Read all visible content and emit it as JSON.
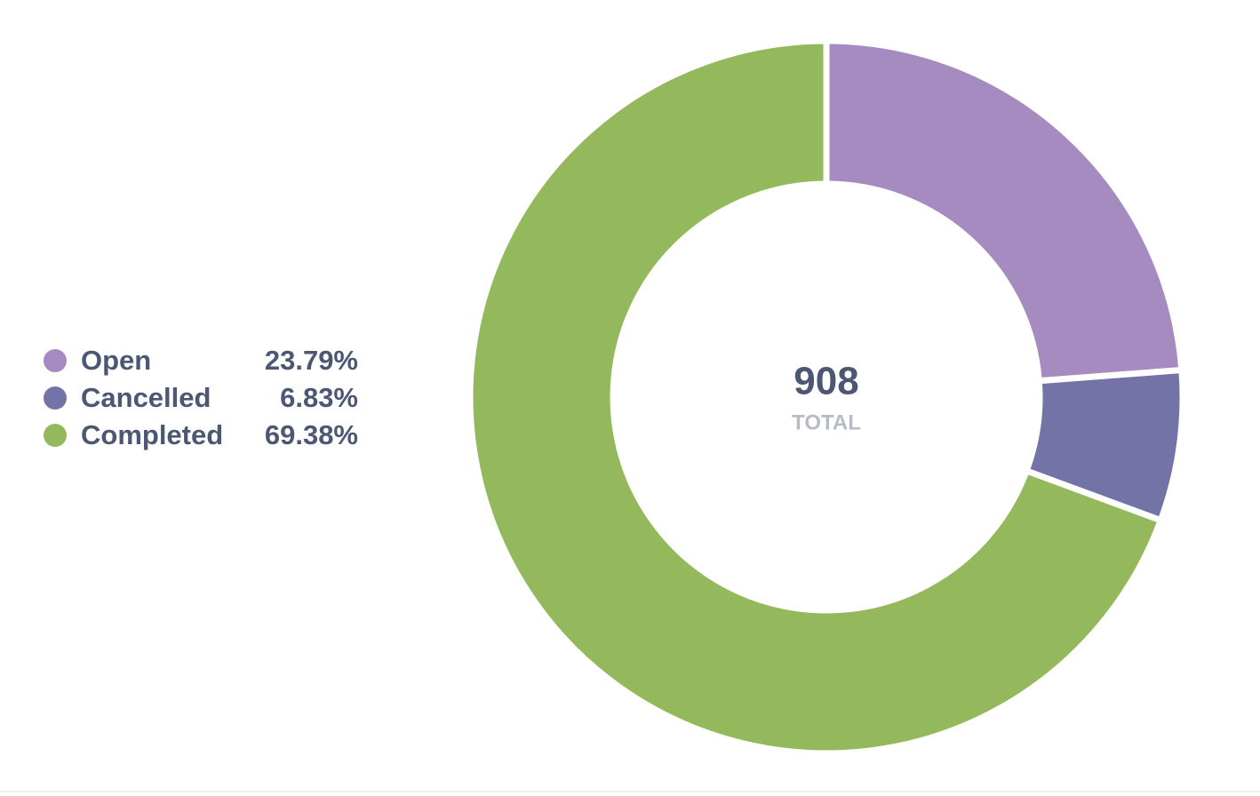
{
  "chart_data": {
    "type": "pie",
    "donut": true,
    "categories": [
      "Open",
      "Cancelled",
      "Completed"
    ],
    "values": [
      23.79,
      6.83,
      69.38
    ],
    "value_labels": [
      "23.79%",
      "6.83%",
      "69.38%"
    ],
    "colors": [
      "#a68bc1",
      "#7373a8",
      "#93b95c"
    ],
    "total": 908,
    "total_label": "TOTAL"
  }
}
